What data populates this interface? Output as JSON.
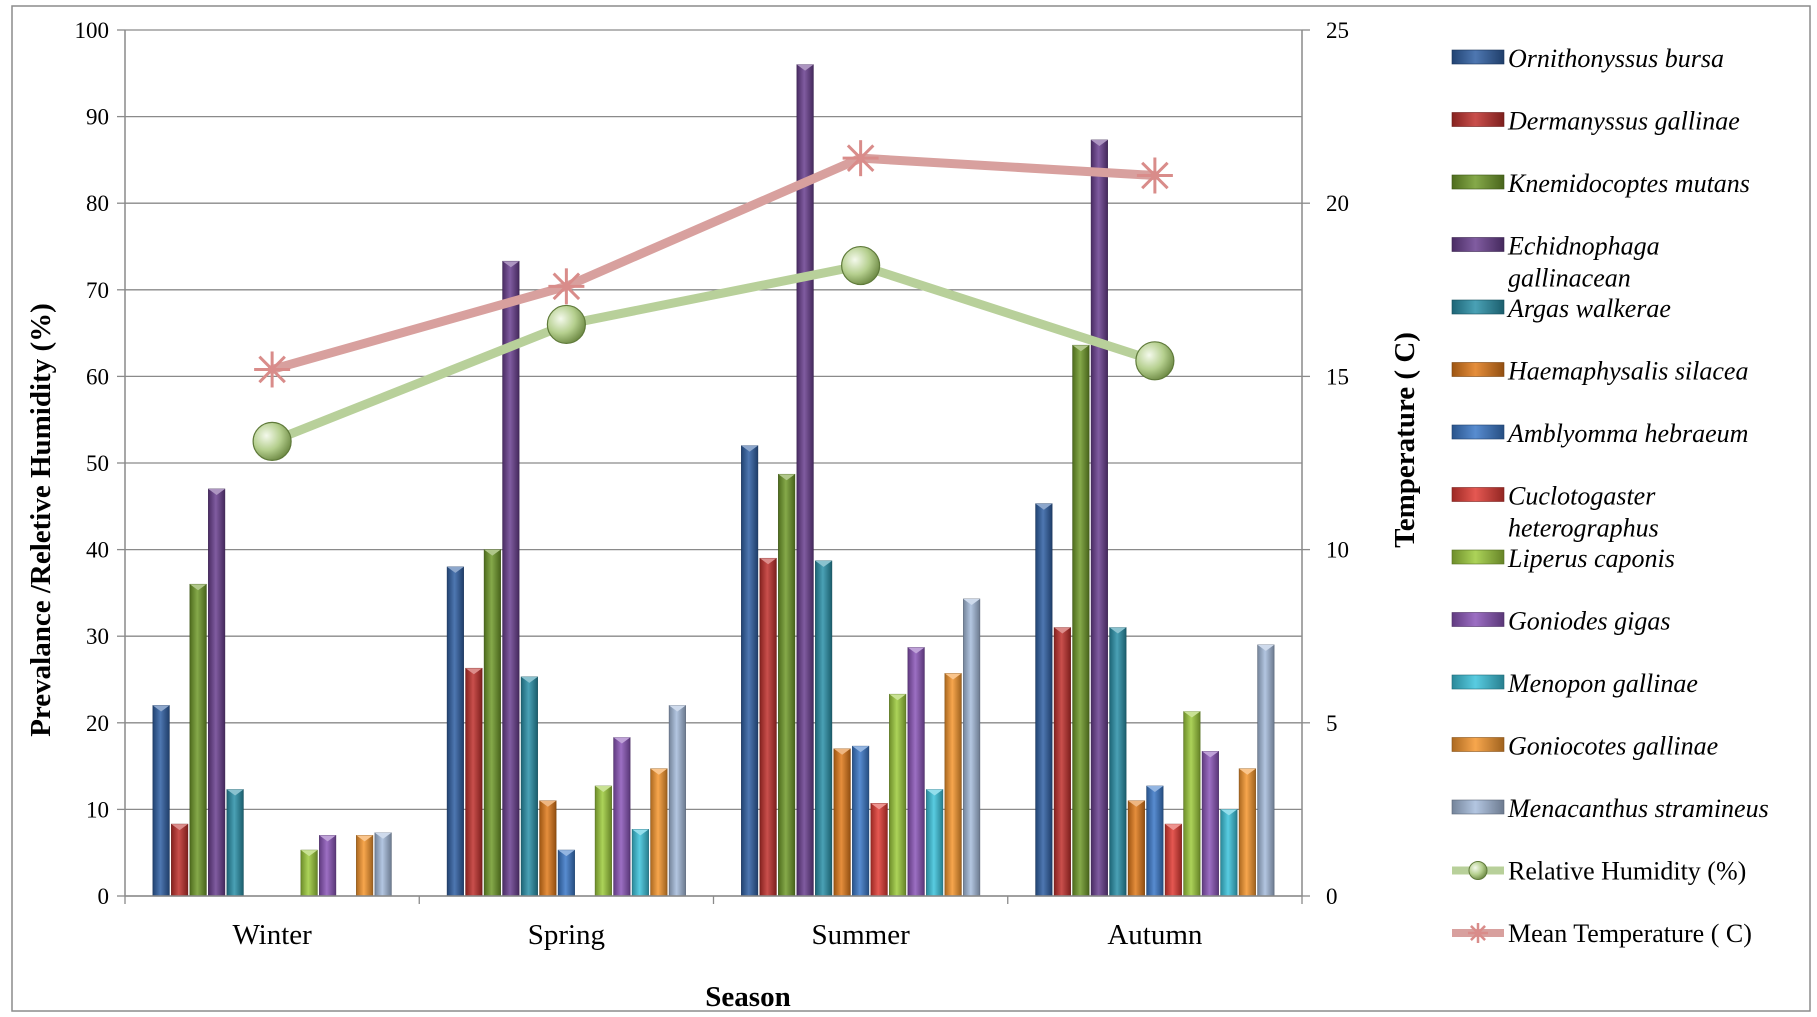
{
  "chart_data": {
    "type": "bar",
    "title": "",
    "xlabel": "Season",
    "ylabel": "Prevalance /Reletive Humidity (%)",
    "y2label": "Temperature ( C)",
    "ylim": [
      0,
      100
    ],
    "y2lim": [
      0,
      25
    ],
    "yticks": [
      "0",
      "10",
      "20",
      "30",
      "40",
      "50",
      "60",
      "70",
      "80",
      "90",
      "100"
    ],
    "y2ticks": [
      "0",
      "5",
      "10",
      "15",
      "20",
      "25"
    ],
    "grid": true,
    "legend_position": "right",
    "categories": [
      "Winter",
      "Spring",
      "Summer",
      "Autumn"
    ],
    "series": [
      {
        "name": "Ornithonyssus bursa",
        "color": "#2f5fa3",
        "values": [
          22,
          38,
          52,
          45.3
        ]
      },
      {
        "name": "Dermanyssus gallinae",
        "color": "#c0302c",
        "values": [
          8.3,
          26.3,
          39,
          31
        ]
      },
      {
        "name": "Knemidocoptes mutans",
        "color": "#6f9a2a",
        "values": [
          36,
          40,
          48.7,
          63.6
        ]
      },
      {
        "name": "Echidnophaga gallinacean",
        "color": "#6a3f8f",
        "values": [
          47,
          73.3,
          96,
          87.3
        ]
      },
      {
        "name": "Argas walkerae",
        "color": "#2a90a8",
        "values": [
          12.3,
          25.3,
          38.7,
          31
        ]
      },
      {
        "name": "Haemaphysalis silacea",
        "color": "#e07a1a",
        "values": [
          0,
          11,
          17,
          11
        ]
      },
      {
        "name": "Amblyomma hebraeum",
        "color": "#3a78c8",
        "values": [
          0,
          5.3,
          17.3,
          12.7
        ]
      },
      {
        "name": "Cuclotogaster heterographus",
        "color": "#e03a34",
        "values": [
          0,
          0,
          10.7,
          8.3
        ]
      },
      {
        "name": "Liperus caponis",
        "color": "#9dcb3c",
        "values": [
          5.3,
          12.7,
          23.3,
          21.3
        ]
      },
      {
        "name": "Goniodes gigas",
        "color": "#8a55b8",
        "values": [
          7,
          18.3,
          28.7,
          16.7
        ]
      },
      {
        "name": "Menopon gallinae",
        "color": "#3cc3dc",
        "values": [
          0,
          7.7,
          12.3,
          10
        ]
      },
      {
        "name": "Goniocotes gallinae",
        "color": "#f5962e",
        "values": [
          7,
          14.7,
          25.7,
          14.7
        ]
      },
      {
        "name": "Menacanthus stramineus",
        "color": "#a6bcdc",
        "values": [
          7.3,
          22,
          34.3,
          29
        ]
      }
    ],
    "lines": [
      {
        "name": "Relative Humidity (%)",
        "axis": "left",
        "color": "#b8d09a",
        "marker": "circle",
        "values": [
          52.5,
          66,
          72.8,
          61.8
        ]
      },
      {
        "name": "Mean Temperature ( C)",
        "axis": "right",
        "color": "#d8a09e",
        "marker": "star",
        "values": [
          15.2,
          17.6,
          21.3,
          20.8
        ]
      }
    ],
    "legend": [
      {
        "label": "Ornithonyssus bursa",
        "style": "bar",
        "color": "#2f5fa3",
        "italic": true
      },
      {
        "label": "Dermanyssus gallinae",
        "style": "bar",
        "color": "#c0302c",
        "italic": true
      },
      {
        "label": "Knemidocoptes mutans",
        "style": "bar",
        "color": "#6f9a2a",
        "italic": true
      },
      {
        "label": "Echidnophaga gallinacean",
        "style": "bar",
        "color": "#6a3f8f",
        "italic": true
      },
      {
        "label": "Argas walkerae",
        "style": "bar",
        "color": "#2a90a8",
        "italic": true
      },
      {
        "label": "Haemaphysalis silacea",
        "style": "bar",
        "color": "#e07a1a",
        "italic": true
      },
      {
        "label": "Amblyomma hebraeum",
        "style": "bar",
        "color": "#3a78c8",
        "italic": true
      },
      {
        "label": "Cuclotogaster heterographus",
        "style": "bar",
        "color": "#e03a34",
        "italic": true
      },
      {
        "label": "Liperus caponis",
        "style": "bar",
        "color": "#9dcb3c",
        "italic": true
      },
      {
        "label": "Goniodes gigas",
        "style": "bar",
        "color": "#8a55b8",
        "italic": true
      },
      {
        "label": "Menopon gallinae",
        "style": "bar",
        "color": "#3cc3dc",
        "italic": true
      },
      {
        "label": "Goniocotes gallinae",
        "style": "bar",
        "color": "#f5962e",
        "italic": true
      },
      {
        "label": "Menacanthus stramineus",
        "style": "bar",
        "color": "#a6bcdc",
        "italic": true
      },
      {
        "label": "Relative Humidity (%)",
        "style": "line-circle",
        "color": "#b8d09a",
        "italic": false
      },
      {
        "label": "Mean Temperature ( C)",
        "style": "line-star",
        "color": "#d8a09e",
        "italic": false
      }
    ]
  }
}
